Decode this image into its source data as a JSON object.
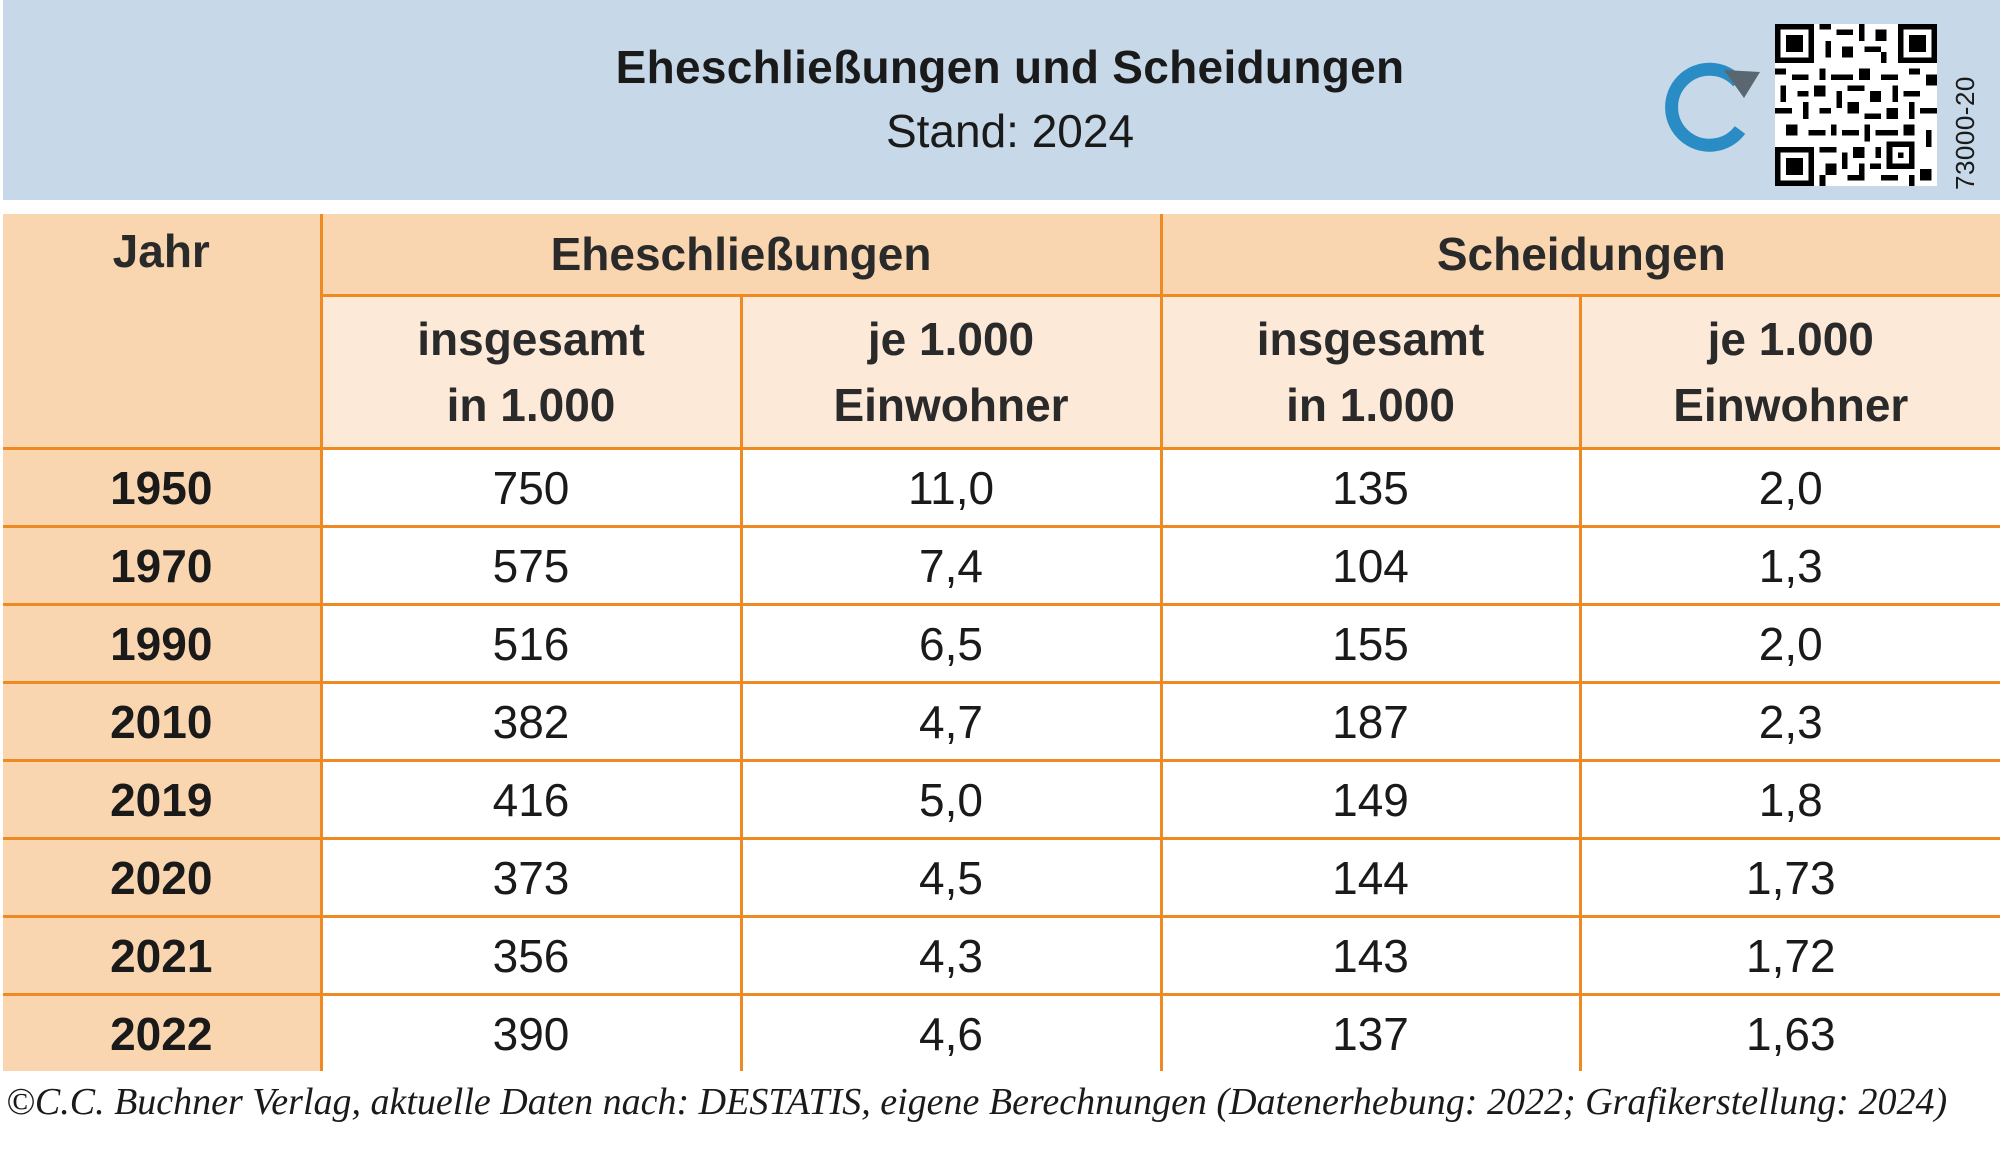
{
  "header": {
    "title": "Eheschließungen und Scheidungen",
    "subtitle": "Stand: 2024",
    "code": "73000-20",
    "logo_icon": "refresh-arrow-icon",
    "qr_icon": "qr-code-icon",
    "colors": {
      "header_bg": "#c7d8e8",
      "logo": "#2a8cc4"
    }
  },
  "table": {
    "col_year": "Jahr",
    "group_1": "Eheschließungen",
    "group_2": "Scheidungen",
    "sub": {
      "total_l1": "insgesamt",
      "total_l2": "in 1.000",
      "per_l1": "je 1.000",
      "per_l2": "Einwohner"
    },
    "colors": {
      "header_dark": "#fad6b0",
      "header_light": "#fde9d8",
      "lines": "#ef8a22"
    },
    "rows": [
      {
        "year": "1950",
        "m_total": "750",
        "m_per": "11,0",
        "d_total": "135",
        "d_per": "2,0"
      },
      {
        "year": "1970",
        "m_total": "575",
        "m_per": "7,4",
        "d_total": "104",
        "d_per": "1,3"
      },
      {
        "year": "1990",
        "m_total": "516",
        "m_per": "6,5",
        "d_total": "155",
        "d_per": "2,0"
      },
      {
        "year": "2010",
        "m_total": "382",
        "m_per": "4,7",
        "d_total": "187",
        "d_per": "2,3"
      },
      {
        "year": "2019",
        "m_total": "416",
        "m_per": "5,0",
        "d_total": "149",
        "d_per": "1,8"
      },
      {
        "year": "2020",
        "m_total": "373",
        "m_per": "4,5",
        "d_total": "144",
        "d_per": "1,73"
      },
      {
        "year": "2021",
        "m_total": "356",
        "m_per": "4,3",
        "d_total": "143",
        "d_per": "1,72"
      },
      {
        "year": "2022",
        "m_total": "390",
        "m_per": "4,6",
        "d_total": "137",
        "d_per": "1,63"
      }
    ]
  },
  "footer": {
    "source": "©C.C. Buchner Verlag, aktuelle Daten nach: DESTATIS, eigene Berechnungen (Datenerhebung: 2022; Grafikerstellung: 2024)"
  }
}
